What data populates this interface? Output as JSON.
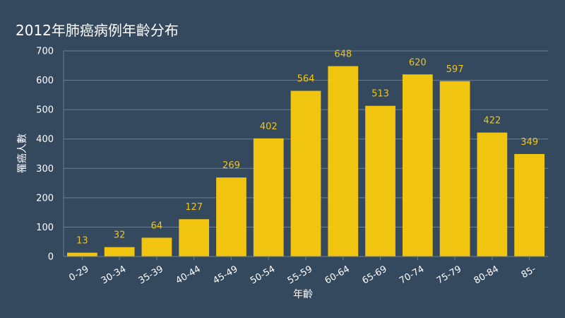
{
  "chart_data": {
    "type": "bar",
    "title": "2012年肺癌病例年齡分布",
    "xlabel": "年齡",
    "ylabel": "罹癌人數",
    "categories": [
      "0-29",
      "30-34",
      "35-39",
      "40-44",
      "45-49",
      "50-54",
      "55-59",
      "60-64",
      "65-69",
      "70-74",
      "75-79",
      "80-84",
      "85-"
    ],
    "values": [
      13,
      32,
      64,
      127,
      269,
      402,
      564,
      648,
      513,
      620,
      597,
      422,
      349
    ],
    "ylim": [
      0,
      700
    ],
    "yticks": [
      0,
      100,
      200,
      300,
      400,
      500,
      600,
      700
    ],
    "grid": true,
    "legend": "none",
    "colors": {
      "background": "#34495e",
      "bar": "#f1c40f",
      "value_label": "#f1c40f",
      "text": "#ffffff",
      "gridline": "#6d7f90"
    }
  }
}
